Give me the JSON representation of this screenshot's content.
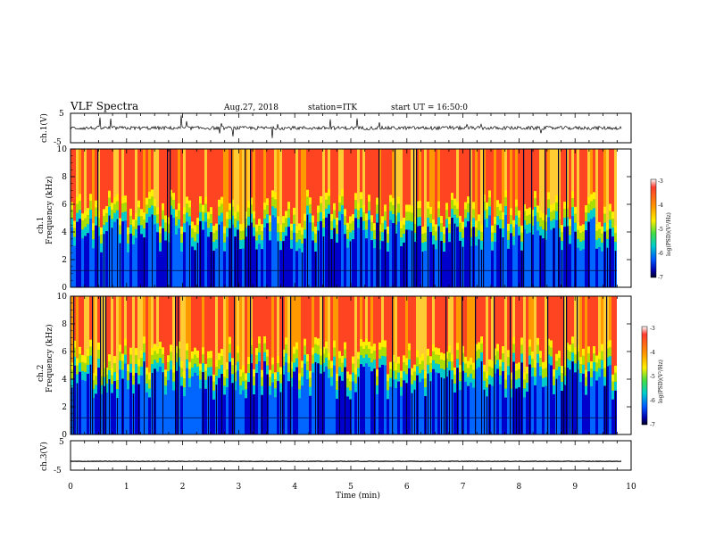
{
  "header": {
    "title": "VLF Spectra",
    "date": "Aug.27, 2018",
    "station": "station=ITK",
    "start": "start UT = 16:50:0"
  },
  "chart_data": [
    {
      "type": "line",
      "panel": "ch1-waveform",
      "ylabel": "ch.1(V)",
      "ylim": [
        -5,
        5
      ],
      "yticks": [
        "5",
        "-5"
      ],
      "baseline": 0,
      "color": "#000000"
    },
    {
      "type": "heatmap",
      "panel": "ch1-spectrogram",
      "ylabel_top": "ch.1",
      "ylabel": "Frequency (kHz)",
      "ylim": [
        0,
        10
      ],
      "yticks": [
        "0",
        "2",
        "4",
        "6",
        "8",
        "10"
      ],
      "colorbar": {
        "label": "log(PSD)(V²/Hz)",
        "range": [
          -7,
          -3
        ],
        "ticks": [
          "-3",
          "-4",
          "-5",
          "-6",
          "-7"
        ]
      }
    },
    {
      "type": "heatmap",
      "panel": "ch2-spectrogram",
      "ylabel_top": "ch.2",
      "ylabel": "Frequency (kHz)",
      "ylim": [
        0,
        10
      ],
      "yticks": [
        "0",
        "2",
        "4",
        "6",
        "8",
        "10"
      ],
      "colorbar": {
        "label": "log(PSD)(V²/Hz)",
        "range": [
          -7,
          -3
        ],
        "ticks": [
          "-3",
          "-4",
          "-5",
          "-6",
          "-7"
        ]
      }
    },
    {
      "type": "line",
      "panel": "ch3-waveform",
      "ylabel": "ch.3(V)",
      "ylim": [
        -5,
        5
      ],
      "yticks": [
        "5",
        "-5"
      ],
      "baseline": -2,
      "color": "#000000"
    }
  ],
  "x_axis": {
    "label": "Time (min)",
    "range": [
      0,
      10
    ],
    "ticks": [
      "0",
      "1",
      "2",
      "3",
      "4",
      "5",
      "6",
      "7",
      "8",
      "9",
      "10"
    ],
    "data_end": 9.83
  },
  "colors": {
    "colormap": [
      "#000033",
      "#0000cc",
      "#0066ff",
      "#00cccc",
      "#00cc44",
      "#aadd00",
      "#ffee00",
      "#ff9900",
      "#ff3300",
      "#dd0000"
    ],
    "spectrogram_bg": "#ff6633"
  }
}
